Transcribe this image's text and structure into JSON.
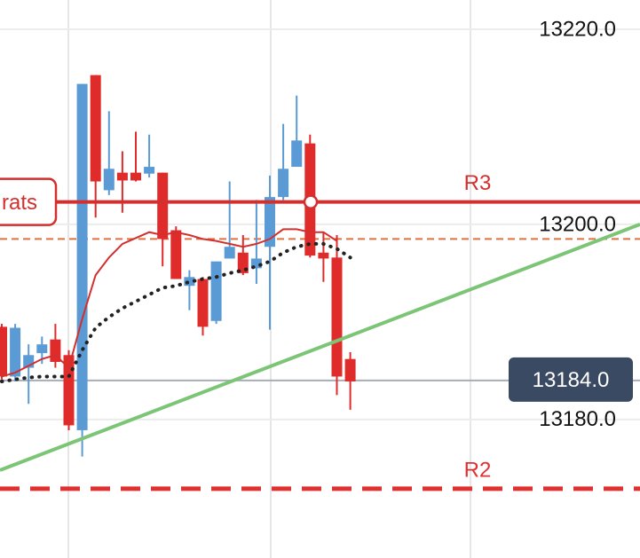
{
  "chart_data": {
    "type": "candlestick",
    "ylim": [
      13165.8,
      13223
    ],
    "yticks": [
      {
        "value": 13220,
        "label": "13220.0"
      },
      {
        "value": 13200,
        "label": "13200.0"
      },
      {
        "value": 13180,
        "label": "13180.0"
      }
    ],
    "up_color": "#5b9bd5",
    "down_color": "#e02b2b",
    "open": [
      13189.5,
      13184.4,
      13185.3,
      13186.8,
      13188.2,
      13186.6,
      13178.9,
      13215.3,
      13203.5,
      13205.3,
      13205.3,
      13205.2,
      13205.3,
      13199.4,
      13193.7,
      13194.4,
      13190.1,
      13196.5,
      13197.1,
      13195.5,
      13197.7,
      13202.8,
      13205.9,
      13208.3,
      13197.1,
      13196.6,
      13186.2
    ],
    "high": [
      13189.8,
      13189.8,
      13187.7,
      13188.5,
      13189.8,
      13187.1,
      13214.4,
      13215.3,
      13211.6,
      13207.5,
      13209.5,
      13209.2,
      13205.3,
      13199.8,
      13195.3,
      13194.6,
      13196.2,
      13204.4,
      13198.9,
      13202.5,
      13205.0,
      13210.3,
      13213.2,
      13209.2,
      13199.2,
      13198.9,
      13186.9
    ],
    "low": [
      13184.1,
      13183.9,
      13181.6,
      13185.7,
      13185.3,
      13178.9,
      13176.2,
      13200.7,
      13203.0,
      13201.2,
      13204.4,
      13204.8,
      13195.7,
      13194.4,
      13191.2,
      13188.6,
      13189.8,
      13196.5,
      13194.8,
      13193.9,
      13189.2,
      13202.5,
      13205.9,
      13196.6,
      13194.1,
      13182.5,
      13181.0
    ],
    "close": [
      13184.4,
      13189.4,
      13186.6,
      13187.7,
      13185.9,
      13179.4,
      13214.4,
      13204.4,
      13205.7,
      13204.5,
      13204.5,
      13205.9,
      13198.5,
      13194.4,
      13194.6,
      13189.5,
      13196.2,
      13197.7,
      13195.0,
      13196.5,
      13202.8,
      13205.7,
      13208.6,
      13196.8,
      13196.5,
      13184.4,
      13183.9
    ],
    "moving_averages": [
      {
        "color": "#d32f2f",
        "style": "solid",
        "values": [
          13184.4,
          13184.8,
          13185.5,
          13186.2,
          13186.6,
          13185.3,
          13190.3,
          13194.8,
          13196.6,
          13198.0,
          13198.6,
          13199.2,
          13198.9,
          13199.2,
          13198.9,
          13198.5,
          13198.3,
          13198.0,
          13197.7,
          13198.0,
          13198.5,
          13199.5,
          13199.5,
          13199.2,
          13199.2,
          13198.3,
          null
        ]
      },
      {
        "color": "#222222",
        "style": "dotted",
        "values": [
          13183.9,
          13184.1,
          13184.3,
          13184.4,
          13184.4,
          13184.4,
          13187.1,
          13189.4,
          13190.5,
          13191.4,
          13192.1,
          13192.8,
          13193.5,
          13193.7,
          13194.1,
          13194.4,
          13194.6,
          13195.0,
          13195.3,
          13195.7,
          13196.2,
          13197.1,
          13197.7,
          13198.0,
          13198.0,
          13197.5,
          13196.6
        ]
      }
    ],
    "levels": [
      {
        "label": "R3",
        "tag": "rats",
        "value": 13202.3,
        "color": "#d32f2f",
        "style": "solid"
      },
      {
        "value": 13198.5,
        "color": "#e07040",
        "style": "dashed"
      },
      {
        "label": "R2",
        "value": 13172.9,
        "color": "#e03030",
        "style": "dashed"
      }
    ],
    "trendline": {
      "start": 13174.8,
      "end": 13200.0,
      "color": "#7cc576"
    },
    "last_price": {
      "value": 13184.0,
      "label": "13184.0",
      "color": "#3b4a63"
    }
  }
}
